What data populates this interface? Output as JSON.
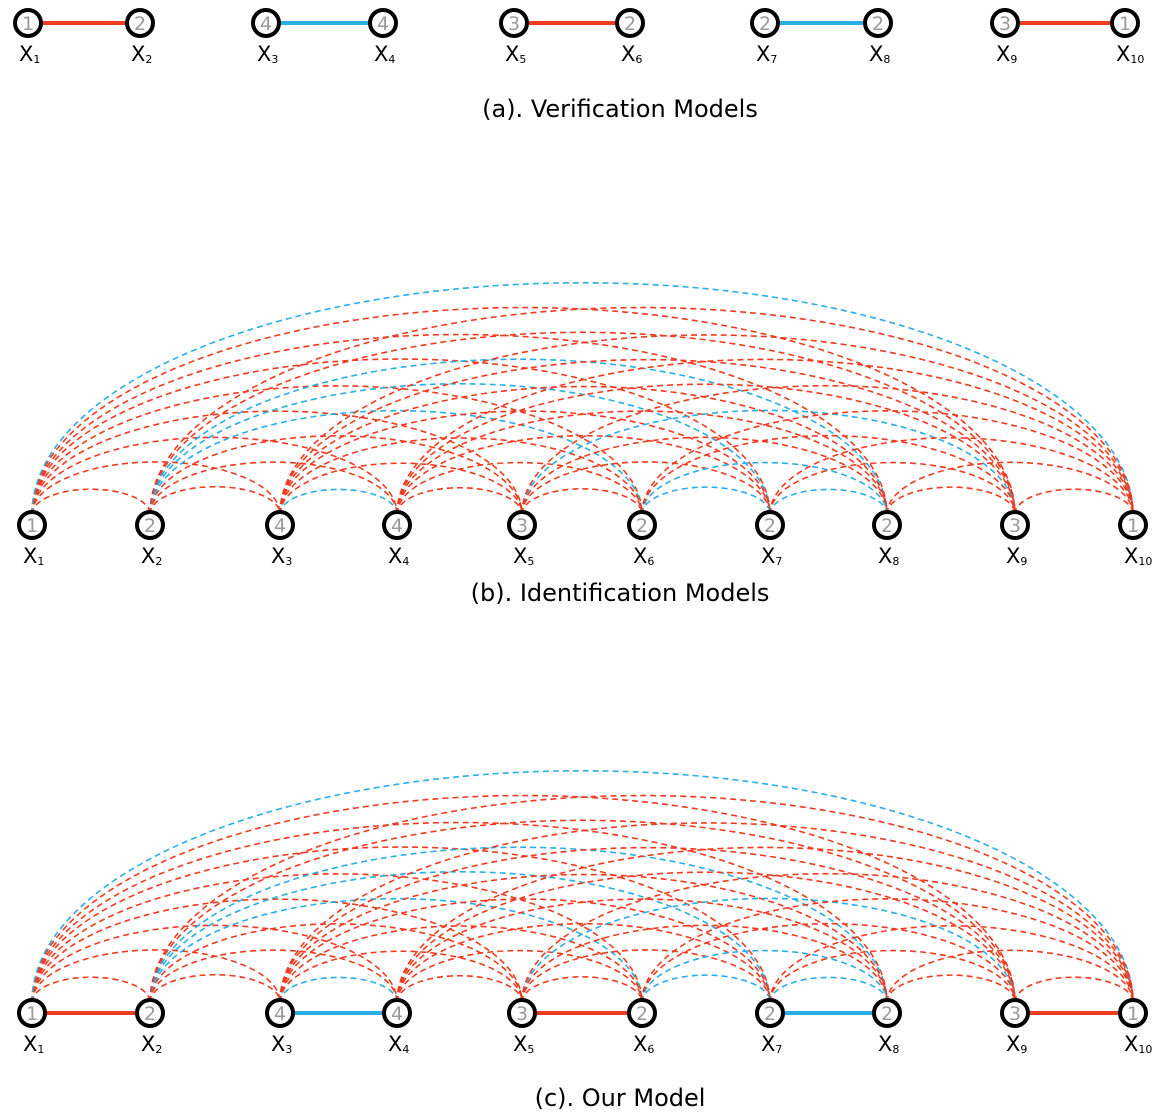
{
  "colors": {
    "same": "#ef3b1f",
    "cross": "#29aee5",
    "node_stroke": "#000000",
    "node_text": "#9a9a9a"
  },
  "nodes": [
    {
      "id": "x1",
      "label": "X",
      "sub": "1",
      "cls": "1"
    },
    {
      "id": "x2",
      "label": "X",
      "sub": "2",
      "cls": "2"
    },
    {
      "id": "x3",
      "label": "X",
      "sub": "3",
      "cls": "4"
    },
    {
      "id": "x4",
      "label": "X",
      "sub": "4",
      "cls": "4"
    },
    {
      "id": "x5",
      "label": "X",
      "sub": "5",
      "cls": "3"
    },
    {
      "id": "x6",
      "label": "X",
      "sub": "6",
      "cls": "2"
    },
    {
      "id": "x7",
      "label": "X",
      "sub": "7",
      "cls": "2"
    },
    {
      "id": "x8",
      "label": "X",
      "sub": "8",
      "cls": "2"
    },
    {
      "id": "x9",
      "label": "X",
      "sub": "9",
      "cls": "3"
    },
    {
      "id": "x10",
      "label": "X",
      "sub": "10",
      "cls": "1"
    }
  ],
  "pairs": [
    [
      0,
      1
    ],
    [
      2,
      3
    ],
    [
      4,
      5
    ],
    [
      6,
      7
    ],
    [
      8,
      9
    ]
  ],
  "panels": {
    "a": {
      "caption": "(a). Verification Models"
    },
    "b": {
      "caption": "(b). Identification Models"
    },
    "c": {
      "caption": "(c). Our Model"
    }
  }
}
